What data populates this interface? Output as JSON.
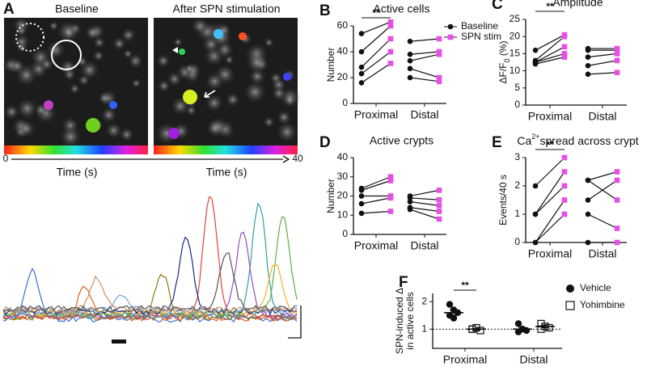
{
  "images": {
    "left_title": "Baseline",
    "right_title": "After SPN stimulation",
    "colorbar_ticks": [
      0,
      40
    ],
    "time_label": "Time (s)",
    "label": "A"
  },
  "chart_data": [
    {
      "type": "paired",
      "label": "B",
      "title": "Active cells",
      "ylabel": "Number",
      "categories": [
        "Proximal",
        "Distal"
      ],
      "series": [
        {
          "name": "Baseline",
          "color": "#111111",
          "values": [
            [
              54,
              40,
              28,
              23,
              16
            ],
            [
              48,
              38,
              33,
              27,
              20
            ]
          ]
        },
        {
          "name": "SPN stim",
          "color": "#e64ee6",
          "values": [
            [
              63,
              60,
              50,
              40,
              31
            ],
            [
              50,
              40,
              38,
              20,
              17
            ]
          ]
        }
      ],
      "ylim": [
        0,
        60
      ],
      "yticks": [
        0,
        20,
        40,
        60
      ],
      "significance": {
        "text": "**",
        "category": 0
      },
      "legend": "top-right"
    },
    {
      "type": "paired",
      "label": "C",
      "title": "Amplitude",
      "ylabel": {
        "text": "ΔF/F",
        "sub": "0",
        "tail": " (%)"
      },
      "categories": [
        "Proximal",
        "Distal"
      ],
      "series": [
        {
          "name": "Baseline",
          "color": "#111111",
          "values": [
            [
              16,
              13,
              12.5,
              12.5,
              12
            ],
            [
              16.5,
              16,
              14,
              11.5,
              9
            ]
          ]
        },
        {
          "name": "SPN stim",
          "color": "#e64ee6",
          "values": [
            [
              20.5,
              20,
              17,
              15,
              14
            ],
            [
              16.5,
              16,
              15,
              13,
              9.5
            ]
          ]
        }
      ],
      "ylim": [
        0,
        25
      ],
      "yticks": [
        0,
        5,
        10,
        15,
        20,
        25
      ],
      "significance": {
        "text": "**",
        "category": 0
      }
    },
    {
      "type": "paired",
      "label": "D",
      "title": "Active crypts",
      "ylabel": "Number",
      "categories": [
        "Proximal",
        "Distal"
      ],
      "series": [
        {
          "name": "Baseline",
          "color": "#111111",
          "values": [
            [
              24,
              23,
              20,
              16,
              11
            ],
            [
              20,
              19,
              17,
              14,
              13
            ]
          ]
        },
        {
          "name": "SPN stim",
          "color": "#e64ee6",
          "values": [
            [
              30,
              28,
              20,
              19,
              12
            ],
            [
              23,
              18,
              15,
              12,
              8
            ]
          ]
        }
      ],
      "ylim": [
        0,
        40
      ],
      "yticks": [
        0,
        10,
        20,
        30,
        40
      ]
    },
    {
      "type": "paired",
      "label": "E",
      "title": {
        "text": "Ca",
        "sup": "2+",
        "tail": "spread across crypt"
      },
      "ylabel": "Events/40 s",
      "categories": [
        "Proximal",
        "Distal"
      ],
      "series": [
        {
          "name": "Baseline",
          "color": "#111111",
          "values": [
            [
              2,
              1,
              1,
              0,
              0
            ],
            [
              2.2,
              2.2,
              1.5,
              1,
              0
            ]
          ]
        },
        {
          "name": "SPN stim",
          "color": "#e64ee6",
          "values": [
            [
              3,
              2.5,
              2,
              1.5,
              1
            ],
            [
              2.5,
              1.5,
              2.2,
              0.5,
              0
            ]
          ]
        }
      ],
      "ylim": [
        0,
        3
      ],
      "yticks": [
        0,
        1,
        2,
        3
      ],
      "significance": {
        "text": "**",
        "category": 0
      }
    },
    {
      "type": "dot",
      "label": "F",
      "ylabel": [
        "SPN-induced Δ",
        "in active cells"
      ],
      "categories": [
        "Proximal",
        "Distal"
      ],
      "series": [
        {
          "name": "Vehicle",
          "color": "#111111",
          "marker": "filled-circle",
          "values": [
            [
              1.9,
              1.7,
              1.6,
              1.5,
              1.4
            ],
            [
              1.2,
              1.0,
              0.95,
              0.9,
              1.0
            ]
          ],
          "mean": [
            1.6,
            1.0
          ],
          "error": [
            0.1,
            0.06
          ]
        },
        {
          "name": "Yohimbine",
          "color": "#111111",
          "marker": "open-square",
          "values": [
            [
              1.0,
              1.05,
              0.95,
              1.0
            ],
            [
              1.2,
              1.1,
              1.05,
              1.0
            ]
          ],
          "mean": [
            1.0,
            1.1
          ],
          "error": [
            0.03,
            0.05
          ]
        }
      ],
      "ylim": [
        0.3,
        2.3
      ],
      "yticks": [
        1,
        2
      ],
      "reference_line": 1,
      "significance": {
        "text": "**",
        "category": 0
      },
      "legend": "right"
    }
  ]
}
